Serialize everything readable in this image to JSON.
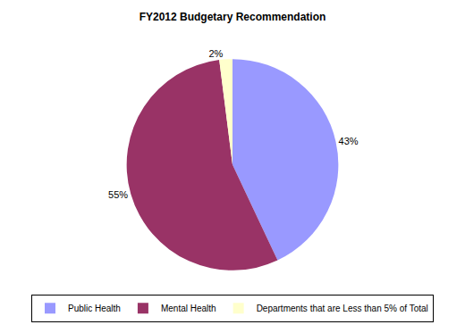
{
  "chart_data": {
    "type": "pie",
    "title": "FY2012 Budgetary Recommendation",
    "categories": [
      "Public Health",
      "Mental Health",
      "Departments that are Less than 5% of Total"
    ],
    "values": [
      43,
      55,
      2
    ],
    "value_labels": [
      "43%",
      "55%",
      "2%"
    ],
    "colors": [
      "#9999ff",
      "#993366",
      "#ffffcc"
    ],
    "data_labels": true,
    "legend": "bottom"
  }
}
